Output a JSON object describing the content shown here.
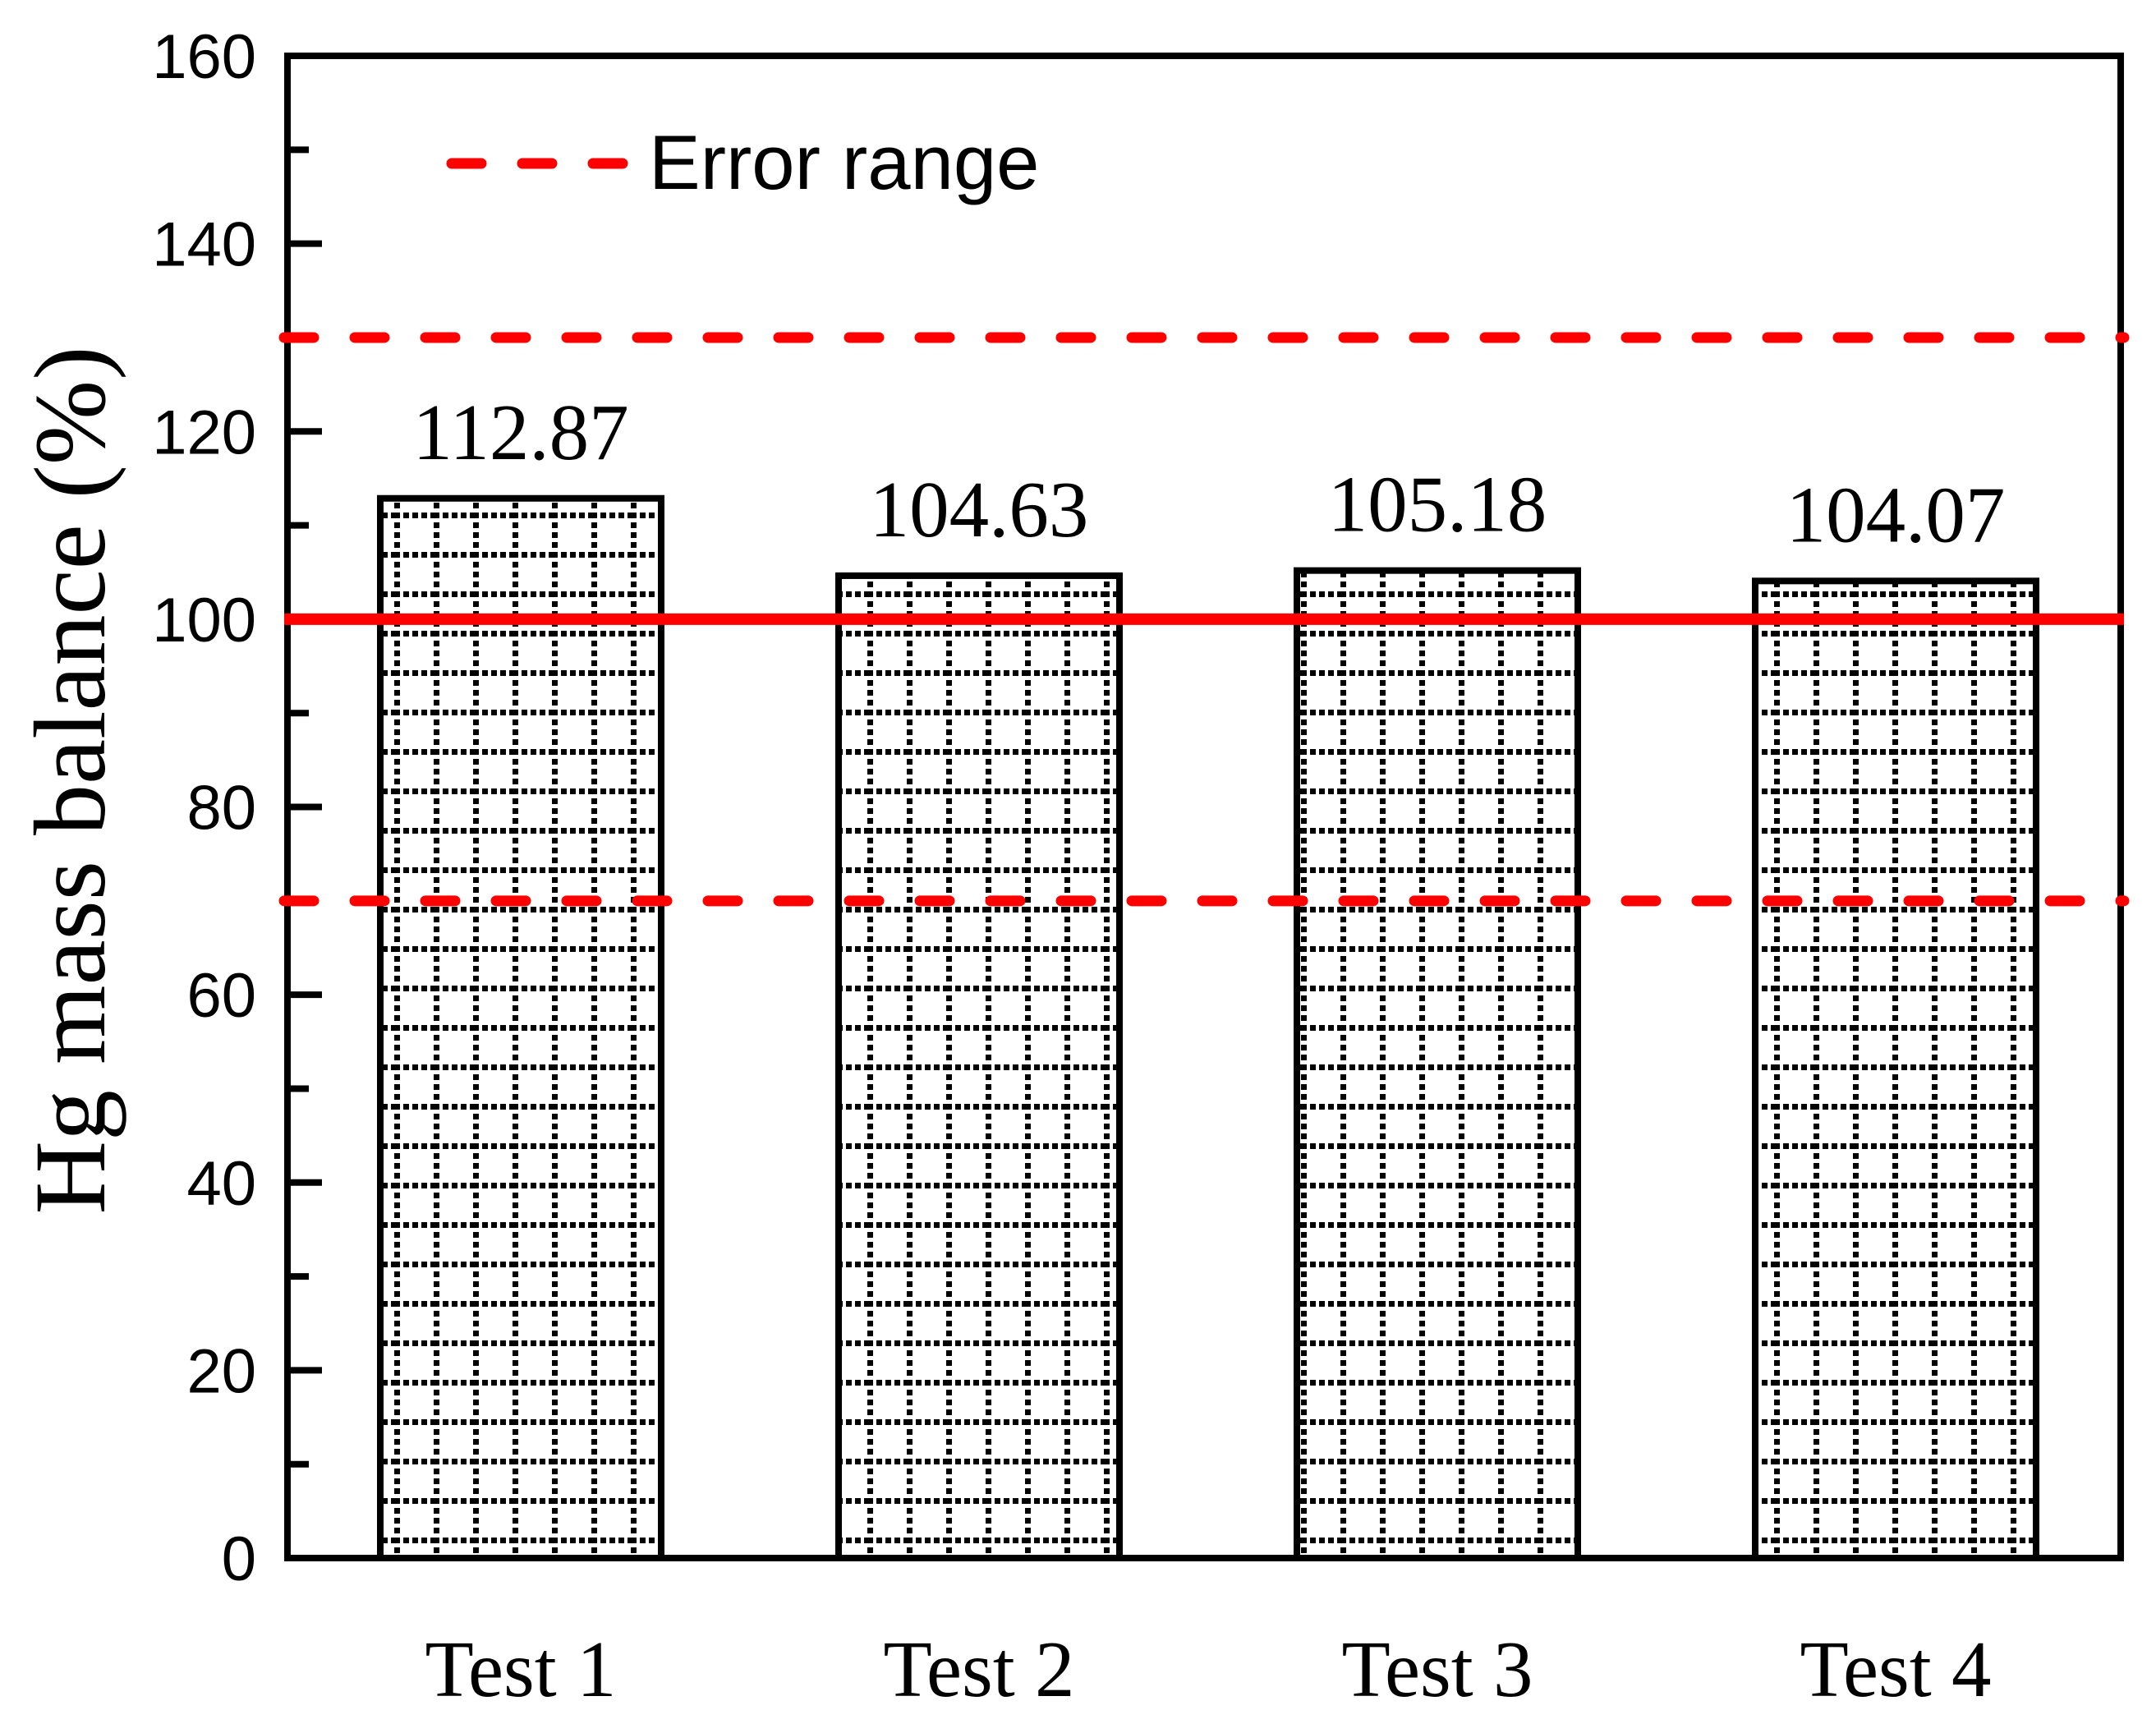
{
  "colors": {
    "background": "#ffffff",
    "axis": "#000000",
    "text": "#000000",
    "bar_fill": "#ffffff",
    "bar_border": "#000000",
    "bar_hatch": "#000000",
    "error_line": "#ff0000",
    "target_line": "#ff0000"
  },
  "legend": {
    "label": "Error range"
  },
  "chart_data": {
    "type": "bar",
    "title": "",
    "categories": [
      "Test 1",
      "Test 2",
      "Test 3",
      "Test 4"
    ],
    "values": [
      112.87,
      104.63,
      105.18,
      104.07
    ],
    "value_labels": [
      "112.87",
      "104.63",
      "105.18",
      "104.07"
    ],
    "xlabel": "",
    "ylabel": "Hg mass balance (%)",
    "ylim": [
      0,
      160
    ],
    "y_major_ticks": [
      0,
      20,
      40,
      60,
      80,
      100,
      120,
      140,
      160
    ],
    "y_major_tick_labels": [
      "0",
      "20",
      "40",
      "60",
      "80",
      "100",
      "120",
      "140",
      "160"
    ],
    "y_minor_tick_step": 10,
    "grid": false,
    "bar_hatch_style": "dotted-grid",
    "reference_lines": [
      {
        "name": "balance-100-line",
        "value": 100,
        "style": "solid",
        "color": "#ff0000"
      },
      {
        "name": "error-upper-line",
        "value": 130,
        "style": "dashed",
        "color": "#ff0000"
      },
      {
        "name": "error-lower-line",
        "value": 70,
        "style": "dashed",
        "color": "#ff0000"
      }
    ],
    "legend": {
      "position": "top-left-inside",
      "entries": [
        {
          "label": "Error range",
          "line_style": "dashed",
          "color": "#ff0000"
        }
      ]
    }
  }
}
